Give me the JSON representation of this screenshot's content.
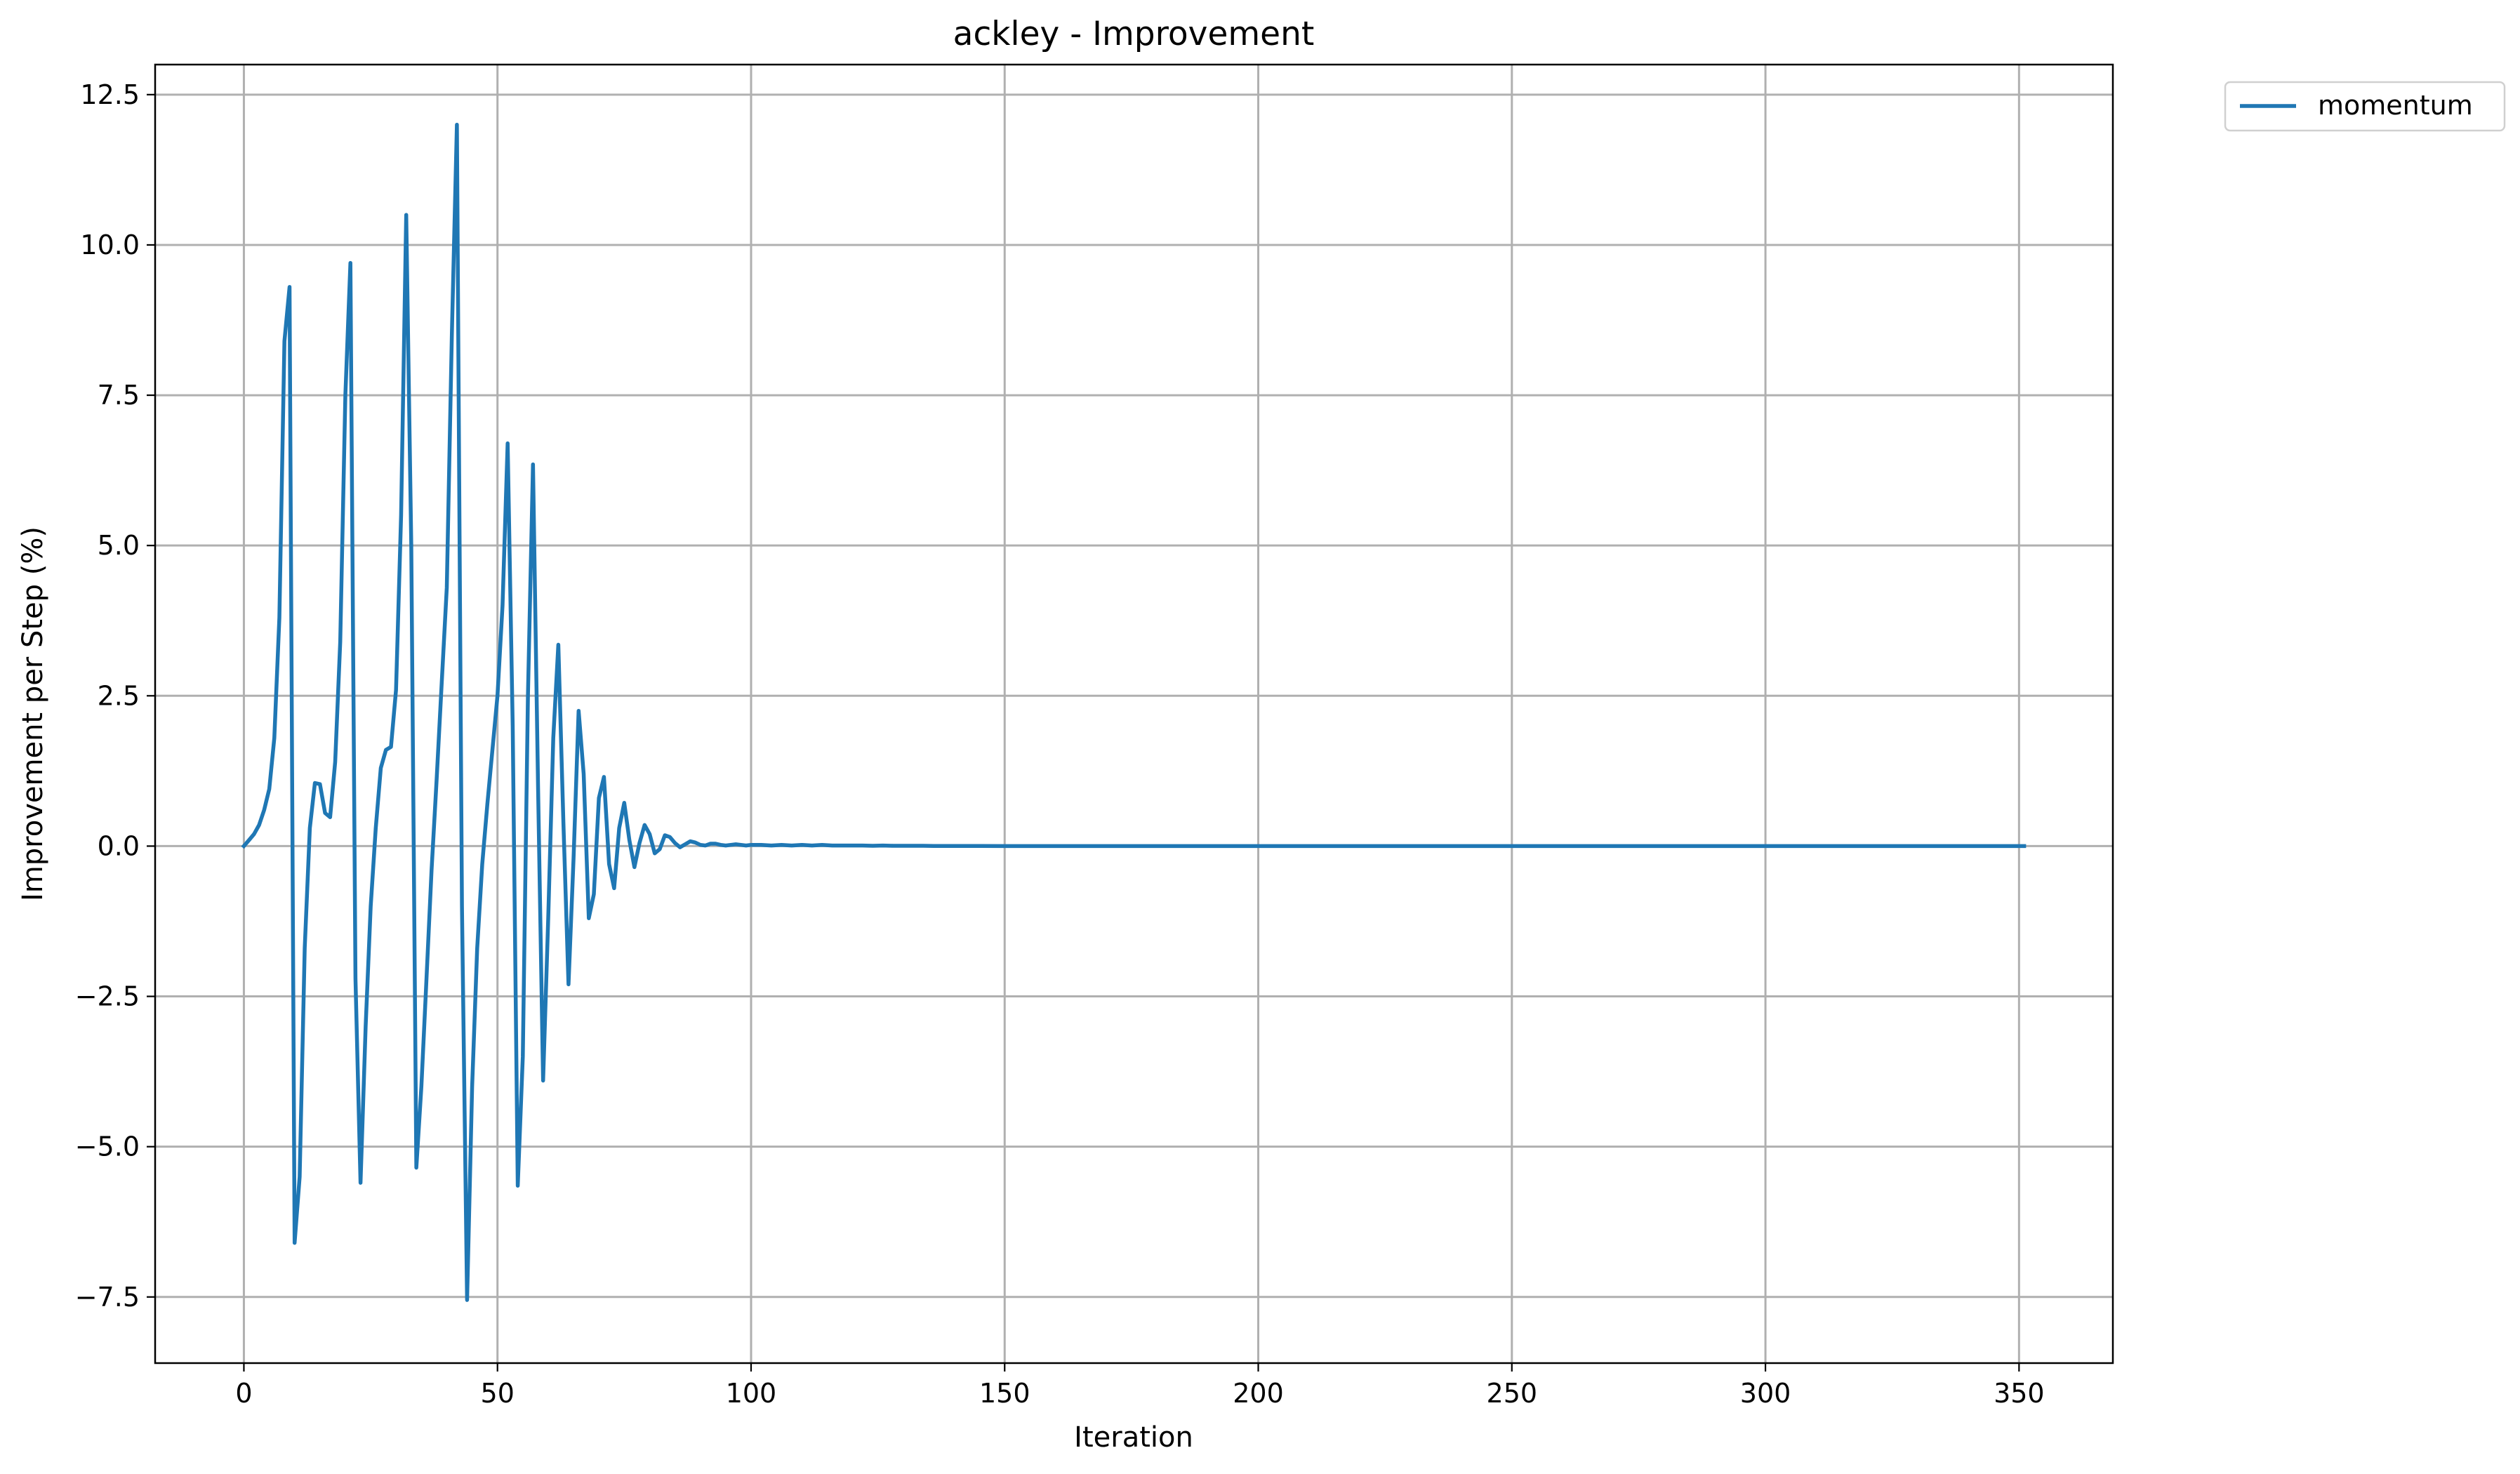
{
  "chart_data": {
    "type": "line",
    "title": "ackley - Improvement",
    "xlabel": "Iteration",
    "ylabel": "Improvement per Step (%)",
    "xlim": [
      -17.5,
      368.5
    ],
    "ylim": [
      -8.6,
      13.0
    ],
    "xticks": [
      0,
      50,
      100,
      150,
      200,
      250,
      300,
      350
    ],
    "xtick_labels": [
      "0",
      "50",
      "100",
      "150",
      "200",
      "250",
      "300",
      "350"
    ],
    "yticks": [
      -7.5,
      -5.0,
      -2.5,
      0.0,
      2.5,
      5.0,
      7.5,
      10.0,
      12.5
    ],
    "ytick_labels": [
      "−7.5",
      "−5.0",
      "−2.5",
      "0.0",
      "2.5",
      "5.0",
      "7.5",
      "10.0",
      "12.5"
    ],
    "grid": true,
    "legend_position": "outside-top-right",
    "series": [
      {
        "name": "momentum",
        "color": "#1f77b4",
        "x": [
          0,
          1,
          2,
          3,
          4,
          5,
          6,
          7,
          8,
          9,
          10,
          11,
          12,
          13,
          14,
          15,
          16,
          17,
          18,
          19,
          20,
          21,
          22,
          23,
          24,
          25,
          26,
          27,
          28,
          29,
          30,
          31,
          32,
          33,
          34,
          35,
          36,
          37,
          38,
          39,
          40,
          41,
          42,
          43,
          44,
          45,
          46,
          47,
          48,
          49,
          50,
          51,
          52,
          53,
          54,
          55,
          56,
          57,
          58,
          59,
          60,
          61,
          62,
          63,
          64,
          65,
          66,
          67,
          68,
          69,
          70,
          71,
          72,
          73,
          74,
          75,
          76,
          77,
          78,
          79,
          80,
          81,
          82,
          83,
          84,
          85,
          86,
          87,
          88,
          89,
          90,
          91,
          92,
          93,
          94,
          95,
          96,
          97,
          98,
          99,
          100,
          102,
          104,
          106,
          108,
          110,
          112,
          114,
          116,
          118,
          120,
          122,
          124,
          126,
          128,
          130,
          132,
          134,
          136,
          138,
          140,
          145,
          150,
          200,
          250,
          300,
          351
        ],
        "y": [
          0,
          0.1,
          0.2,
          0.35,
          0.6,
          0.95,
          1.8,
          3.8,
          8.4,
          9.3,
          -6.6,
          -5.5,
          -1.7,
          0.3,
          1.05,
          1.03,
          0.55,
          0.48,
          1.4,
          3.4,
          7.5,
          9.7,
          -2.2,
          -5.6,
          -3.0,
          -1.0,
          0.3,
          1.3,
          1.6,
          1.65,
          2.6,
          5.5,
          10.5,
          5.0,
          -5.35,
          -4.0,
          -2.2,
          -0.4,
          1.1,
          2.7,
          4.3,
          8.5,
          12.0,
          -1.0,
          -7.55,
          -4.0,
          -1.7,
          -0.3,
          0.7,
          1.6,
          2.5,
          4.0,
          6.7,
          2.0,
          -5.65,
          -3.5,
          2.5,
          6.35,
          1.0,
          -3.9,
          -1.2,
          1.8,
          3.35,
          0.4,
          -2.3,
          -0.2,
          2.25,
          1.2,
          -1.2,
          -0.8,
          0.8,
          1.15,
          -0.3,
          -0.7,
          0.3,
          0.72,
          0.1,
          -0.35,
          0.05,
          0.35,
          0.2,
          -0.12,
          -0.05,
          0.18,
          0.15,
          0.05,
          -0.02,
          0.03,
          0.08,
          0.06,
          0.02,
          0.01,
          0.04,
          0.04,
          0.02,
          0.01,
          0.02,
          0.03,
          0.02,
          0.01,
          0.02,
          0.02,
          0.01,
          0.02,
          0.01,
          0.02,
          0.01,
          0.02,
          0.01,
          0.01,
          0.01,
          0.01,
          0.005,
          0.01,
          0.005,
          0.005,
          0.005,
          0.005,
          0.003,
          0.002,
          0.001,
          0.001,
          0,
          0,
          0,
          0,
          0
        ]
      }
    ]
  }
}
